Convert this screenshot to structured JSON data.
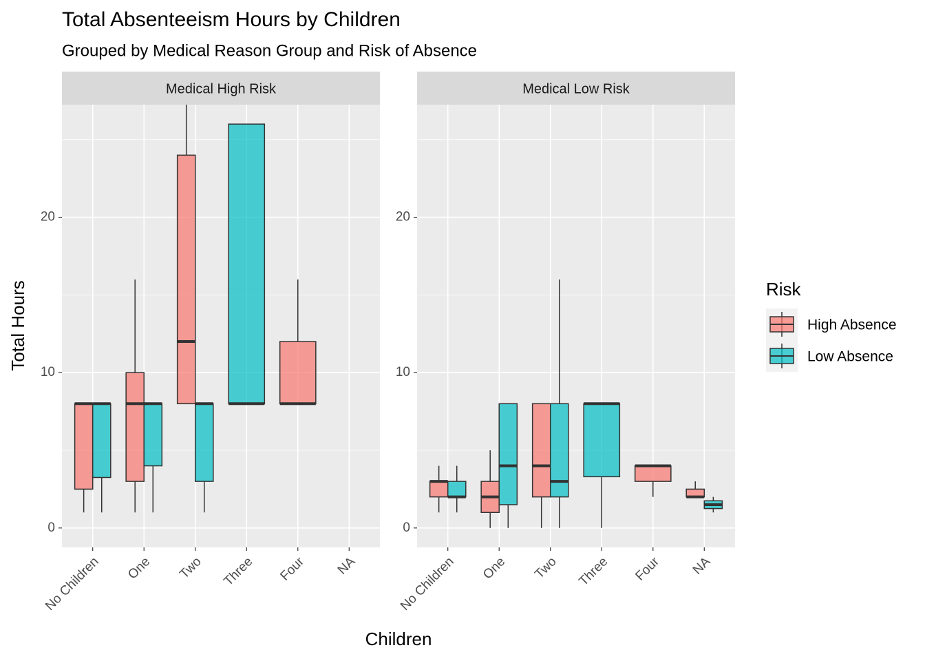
{
  "chart_data": {
    "type": "box",
    "title": "Total Absenteeism Hours by Children",
    "subtitle": "Grouped by Medical Reason Group and Risk of Absence",
    "x_label": "Children",
    "y_label": "Total Hours",
    "legend_title": "Risk",
    "legend": "right",
    "grid": true,
    "categories": [
      "No Children",
      "One",
      "Two",
      "Three",
      "Four",
      "NA"
    ],
    "ylim": [
      -1.25,
      27.25
    ],
    "yticks": [
      0,
      10,
      20
    ],
    "y_minor_ticks": [
      5,
      15,
      25
    ],
    "series": [
      {
        "name": "High Absence",
        "color": "#F8766D"
      },
      {
        "name": "Low Absence",
        "color": "#00BFC4"
      }
    ],
    "panels": [
      {
        "title": "Medical High Risk",
        "series": [
          {
            "values": [
              {
                "low": 1,
                "q1": 2.5,
                "median": 8,
                "q3": 8,
                "high": 8
              },
              {
                "low": 1,
                "q1": 3,
                "median": 8,
                "q3": 10,
                "high": 16
              },
              {
                "low": 8,
                "q1": 8,
                "median": 12,
                "q3": 24,
                "high": 32
              },
              null,
              {
                "low": 8,
                "q1": 8,
                "median": 8,
                "q3": 12,
                "high": 16
              },
              null
            ]
          },
          {
            "values": [
              {
                "low": 1,
                "q1": 3.25,
                "median": 8,
                "q3": 8,
                "high": 8
              },
              {
                "low": 1,
                "q1": 4,
                "median": 8,
                "q3": 8,
                "high": 8
              },
              {
                "low": 1,
                "q1": 3,
                "median": 8,
                "q3": 8,
                "high": 8
              },
              {
                "low": 8,
                "q1": 8,
                "median": 8,
                "q3": 26,
                "high": 26
              },
              null,
              null
            ]
          }
        ]
      },
      {
        "title": "Medical Low Risk",
        "series": [
          {
            "values": [
              {
                "low": 1,
                "q1": 2,
                "median": 3,
                "q3": 3,
                "high": 4
              },
              {
                "low": 0,
                "q1": 1,
                "median": 2,
                "q3": 3,
                "high": 5
              },
              {
                "low": 0,
                "q1": 2,
                "median": 4,
                "q3": 8,
                "high": 8
              },
              null,
              {
                "low": 2,
                "q1": 3,
                "median": 4,
                "q3": 4,
                "high": 4
              },
              {
                "low": 2,
                "q1": 2,
                "median": 2,
                "q3": 2.5,
                "high": 3
              }
            ]
          },
          {
            "values": [
              {
                "low": 1,
                "q1": 2,
                "median": 2,
                "q3": 3,
                "high": 4
              },
              {
                "low": 0,
                "q1": 1.5,
                "median": 4,
                "q3": 8,
                "high": 8
              },
              {
                "low": 0,
                "q1": 2,
                "median": 3,
                "q3": 8,
                "high": 16
              },
              {
                "low": 0,
                "q1": 3.3,
                "median": 8,
                "q3": 8,
                "high": 8
              },
              null,
              {
                "low": 1,
                "q1": 1.25,
                "median": 1.5,
                "q3": 1.75,
                "high": 2
              }
            ]
          }
        ]
      }
    ]
  }
}
